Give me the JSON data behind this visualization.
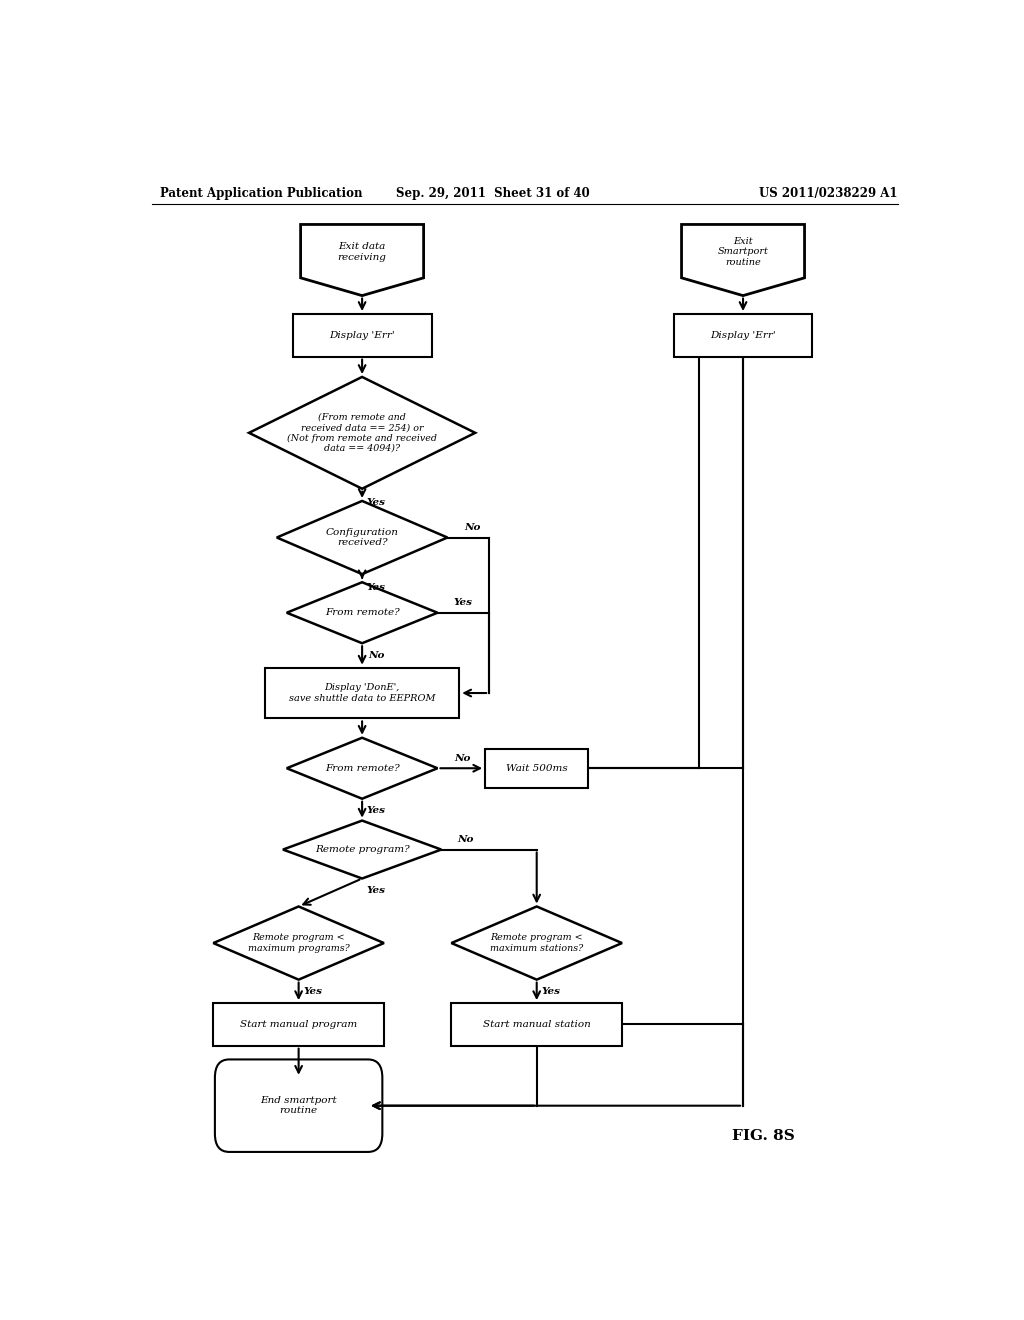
{
  "title_left": "Patent Application Publication",
  "title_mid": "Sep. 29, 2011  Sheet 31 of 40",
  "title_right": "US 2011/0238229 A1",
  "fig_label": "FIG. 8S",
  "background_color": "#ffffff",
  "line_color": "#000000"
}
